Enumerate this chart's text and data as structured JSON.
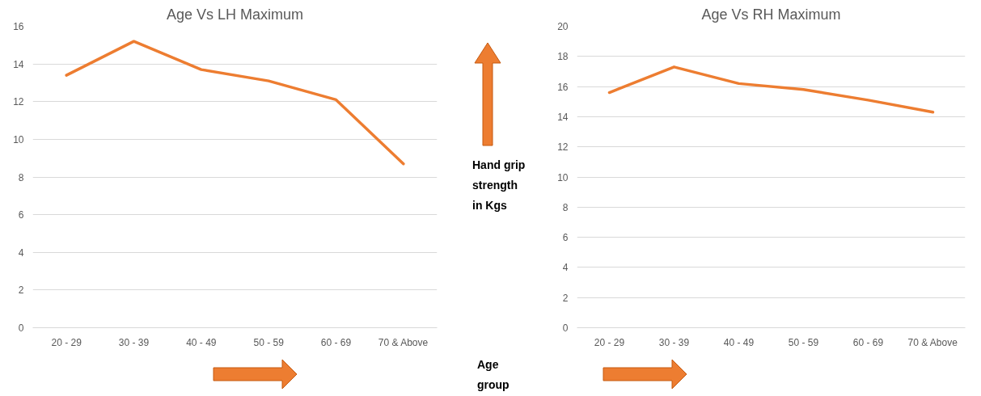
{
  "chart_data": [
    {
      "type": "line",
      "title": "Age Vs LH Maximum",
      "categories": [
        "20 - 29",
        "30 - 39",
        "40 - 49",
        "50 - 59",
        "60 - 69",
        "70 & Above"
      ],
      "series": [
        {
          "color": "#ed7d31",
          "values": [
            13.4,
            15.2,
            13.7,
            13.1,
            12.1,
            8.7
          ]
        }
      ],
      "ylim": [
        0,
        16
      ],
      "yticks": [
        0,
        2,
        4,
        6,
        8,
        10,
        12,
        14,
        16
      ],
      "grid": "y",
      "marker": "none",
      "line_style": "solid",
      "annotations": [
        "Hand grip strength in Kgs",
        "Age group"
      ]
    },
    {
      "type": "line",
      "title": "Age Vs RH Maximum",
      "categories": [
        "20 - 29",
        "30 - 39",
        "40 - 49",
        "50 - 59",
        "60 - 69",
        "70 & Above"
      ],
      "series": [
        {
          "color": "#ed7d31",
          "values": [
            15.6,
            17.3,
            16.2,
            15.8,
            15.1,
            14.3
          ]
        }
      ],
      "ylim": [
        0,
        20
      ],
      "yticks": [
        0,
        2,
        4,
        6,
        8,
        10,
        12,
        14,
        16,
        18,
        20
      ],
      "grid": "y",
      "marker": "none",
      "line_style": "solid"
    }
  ]
}
